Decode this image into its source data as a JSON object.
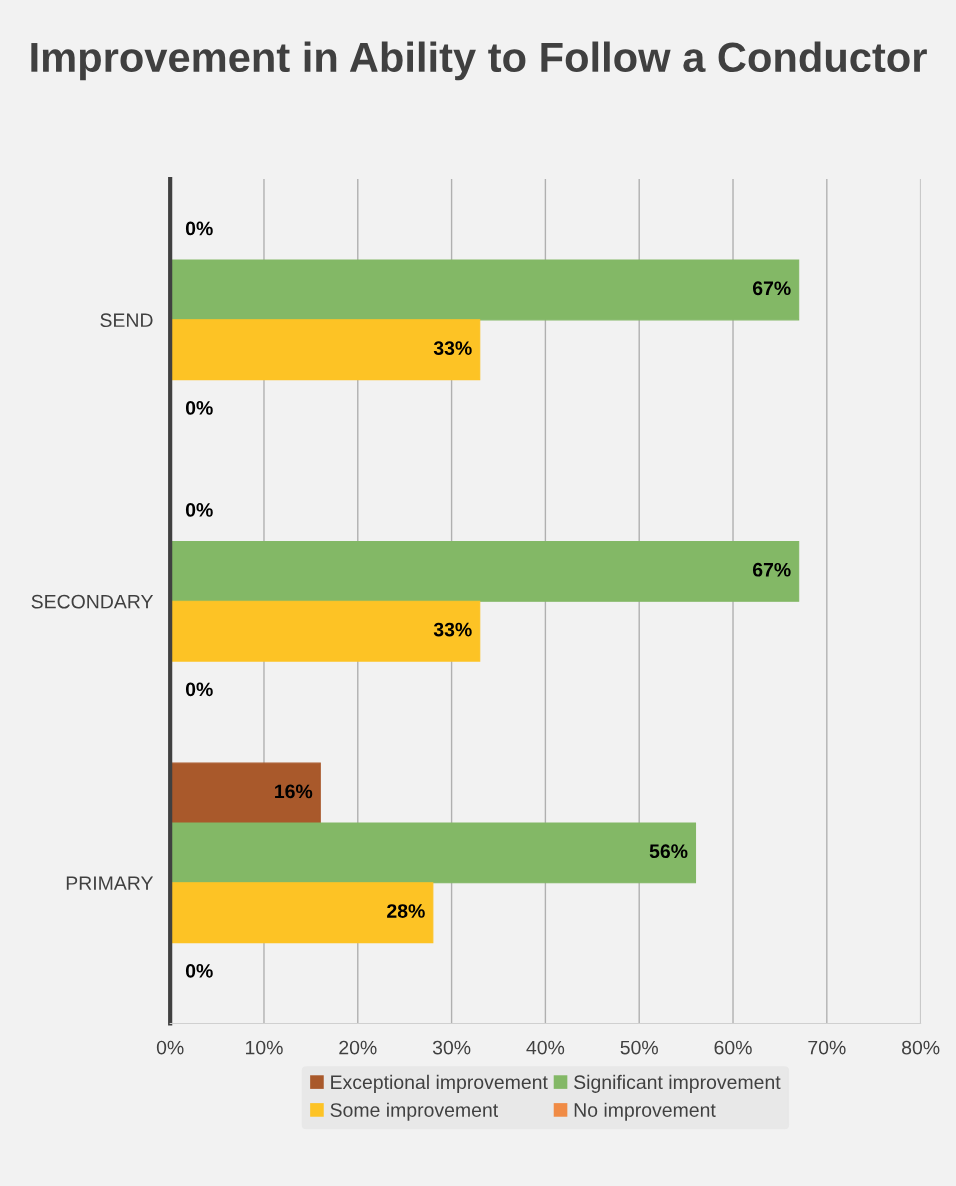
{
  "chart_data": {
    "type": "bar",
    "orientation": "horizontal",
    "title": "Improvement in Ability to Follow a Conductor",
    "categories": [
      "SEND",
      "SECONDARY",
      "PRIMARY"
    ],
    "series": [
      {
        "name": "Exceptional improvement",
        "color": "#a9592b",
        "values": [
          0,
          0,
          16
        ],
        "value_labels": [
          "0%",
          "0%",
          "16%"
        ]
      },
      {
        "name": "Significant improvement",
        "color": "#83b866",
        "values": [
          67,
          67,
          56
        ],
        "value_labels": [
          "67%",
          "67%",
          "56%"
        ]
      },
      {
        "name": "Some improvement",
        "color": "#fdc325",
        "values": [
          33,
          33,
          28
        ],
        "value_labels": [
          "33%",
          "33%",
          "28%"
        ]
      },
      {
        "name": "No improvement",
        "color": "#f08b45",
        "values": [
          0,
          0,
          0
        ],
        "value_labels": [
          "0%",
          "0%",
          "0%"
        ]
      }
    ],
    "xlim": [
      0,
      80
    ],
    "xticks": [
      {
        "value": 0,
        "label": "0%"
      },
      {
        "value": 10,
        "label": "10%"
      },
      {
        "value": 20,
        "label": "20%"
      },
      {
        "value": 30,
        "label": "30%"
      },
      {
        "value": 40,
        "label": "40%"
      },
      {
        "value": 50,
        "label": "50%"
      },
      {
        "value": 60,
        "label": "60%"
      },
      {
        "value": 70,
        "label": "70%"
      },
      {
        "value": 80,
        "label": "80%"
      }
    ],
    "grid": "x",
    "legend": "bottom"
  }
}
